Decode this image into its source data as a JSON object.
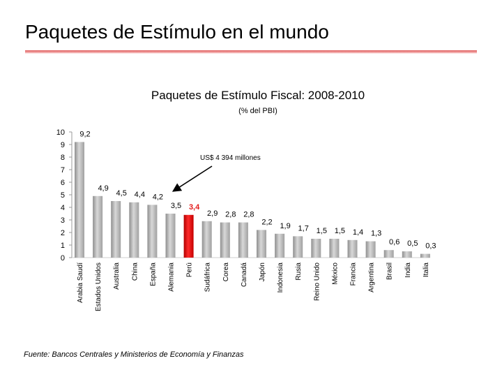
{
  "slide": {
    "title": "Paquetes de Estímulo en el mundo"
  },
  "source": "Fuente: Bancos Centrales y Ministerios de Economía y Finanzas",
  "colors": {
    "bar": "#c0c0c0",
    "highlight": "#e31b1b",
    "highlight_label": "#e31b1b",
    "title_rule": "#e06060"
  },
  "chart_data": {
    "type": "bar",
    "title": "Paquetes de Estímulo Fiscal: 2008-2010",
    "subtitle": "(% del PBI)",
    "xlabel": "",
    "ylabel": "",
    "ylim": [
      0,
      10
    ],
    "yticks": [
      0,
      1,
      2,
      3,
      4,
      5,
      6,
      7,
      8,
      9,
      10
    ],
    "grid": false,
    "categories": [
      "Arabia Saudí",
      "Estados Unidos",
      "Australia",
      "China",
      "España",
      "Alemania",
      "Perú",
      "Sudáfrica",
      "Corea",
      "Canadá",
      "Japón",
      "Indonesia",
      "Rusia",
      "Reino Unido",
      "México",
      "Francia",
      "Argentina",
      "Brasil",
      "India",
      "Italia"
    ],
    "values": [
      9.2,
      4.9,
      4.5,
      4.4,
      4.2,
      3.5,
      3.4,
      2.9,
      2.8,
      2.8,
      2.2,
      1.9,
      1.7,
      1.5,
      1.5,
      1.4,
      1.3,
      0.6,
      0.5,
      0.3
    ],
    "value_labels": [
      "9,2",
      "4,9",
      "4,5",
      "4,4",
      "4,2",
      "3,5",
      "3,4",
      "2,9",
      "2,8",
      "2,8",
      "2,2",
      "1,9",
      "1,7",
      "1,5",
      "1,5",
      "1,4",
      "1,3",
      "0,6",
      "0,5",
      "0,3"
    ],
    "highlight_category": "Perú",
    "annotation": {
      "text": "US$ 4 394 millones",
      "target": "Perú"
    }
  }
}
